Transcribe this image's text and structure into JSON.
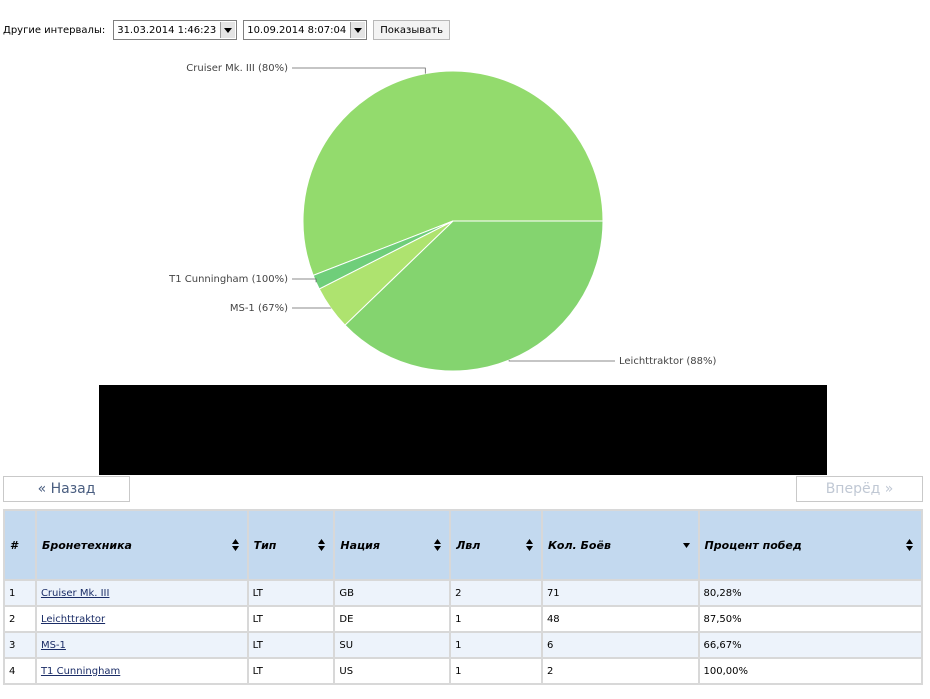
{
  "filter": {
    "label": "Другие интервалы:",
    "date_from": "31.03.2014 1:46:23",
    "date_to": "10.09.2014 8:07:04",
    "show_button": "Показывать"
  },
  "chart_data": {
    "type": "pie",
    "slices": [
      {
        "label": "Cruiser Mk. III (80%)",
        "value": 71,
        "color": "#93db6d"
      },
      {
        "label": "Leichttraktor (88%)",
        "value": 48,
        "color": "#84d46f"
      },
      {
        "label": "MS-1 (67%)",
        "value": 6,
        "color": "#aee36f"
      },
      {
        "label": "T1 Cunningham (100%)",
        "value": 2,
        "color": "#6fce7a"
      }
    ]
  },
  "nav": {
    "back": "« Назад",
    "forward": "Вперёд »"
  },
  "table": {
    "headers": [
      "#",
      "Бронетехника",
      "Тип",
      "Нация",
      "Лвл",
      "Кол. Боёв",
      "Процент побед"
    ],
    "rows": [
      [
        "1",
        "Cruiser Mk. III",
        "LT",
        "GB",
        "2",
        "71",
        "80,28%"
      ],
      [
        "2",
        "Leichttraktor",
        "LT",
        "DE",
        "1",
        "48",
        "87,50%"
      ],
      [
        "3",
        "MS-1",
        "LT",
        "SU",
        "1",
        "6",
        "66,67%"
      ],
      [
        "4",
        "T1 Cunningham",
        "LT",
        "US",
        "1",
        "2",
        "100,00%"
      ]
    ]
  }
}
